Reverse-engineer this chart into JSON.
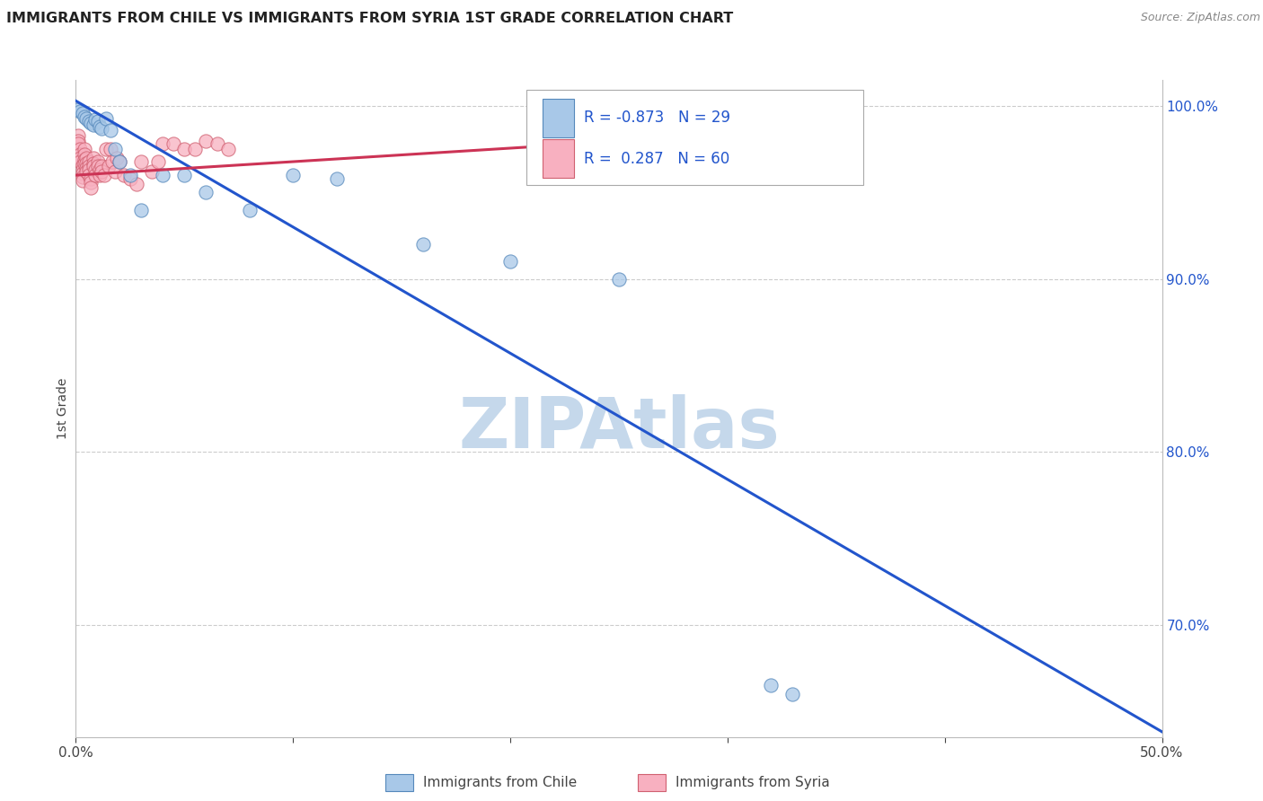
{
  "title": "IMMIGRANTS FROM CHILE VS IMMIGRANTS FROM SYRIA 1ST GRADE CORRELATION CHART",
  "source": "Source: ZipAtlas.com",
  "ylabel": "1st Grade",
  "xlim": [
    0.0,
    0.5
  ],
  "ylim": [
    0.635,
    1.015
  ],
  "xticks": [
    0.0,
    0.1,
    0.2,
    0.3,
    0.4,
    0.5
  ],
  "xticklabels": [
    "0.0%",
    "",
    "",
    "",
    "",
    "50.0%"
  ],
  "right_yticks": [
    1.0,
    0.9,
    0.8,
    0.7
  ],
  "right_yticklabels": [
    "100.0%",
    "90.0%",
    "80.0%",
    "70.0%"
  ],
  "watermark": "ZIPAtlas",
  "watermark_color": "#c5d8eb",
  "chile_color": "#a8c8e8",
  "chile_edge_color": "#5588bb",
  "syria_color": "#f8b0c0",
  "syria_edge_color": "#d06070",
  "chile_R": -0.873,
  "chile_N": 29,
  "syria_R": 0.287,
  "syria_N": 60,
  "chile_trend_color": "#2255cc",
  "syria_trend_color": "#cc3355",
  "legend_text_color": "#2255cc",
  "chile_scatter_x": [
    0.001,
    0.002,
    0.003,
    0.004,
    0.005,
    0.006,
    0.007,
    0.008,
    0.009,
    0.01,
    0.011,
    0.012,
    0.014,
    0.016,
    0.018,
    0.02,
    0.025,
    0.03,
    0.04,
    0.05,
    0.06,
    0.08,
    0.1,
    0.12,
    0.16,
    0.2,
    0.25,
    0.32,
    0.33
  ],
  "chile_scatter_y": [
    0.998,
    0.997,
    0.996,
    0.994,
    0.993,
    0.991,
    0.99,
    0.989,
    0.992,
    0.991,
    0.988,
    0.987,
    0.993,
    0.986,
    0.975,
    0.968,
    0.96,
    0.94,
    0.96,
    0.96,
    0.95,
    0.94,
    0.96,
    0.958,
    0.92,
    0.91,
    0.9,
    0.665,
    0.66
  ],
  "syria_scatter_x": [
    0.001,
    0.001,
    0.001,
    0.002,
    0.002,
    0.002,
    0.002,
    0.003,
    0.003,
    0.003,
    0.003,
    0.003,
    0.004,
    0.004,
    0.004,
    0.004,
    0.005,
    0.005,
    0.005,
    0.005,
    0.006,
    0.006,
    0.006,
    0.006,
    0.007,
    0.007,
    0.007,
    0.008,
    0.008,
    0.008,
    0.009,
    0.009,
    0.01,
    0.01,
    0.011,
    0.011,
    0.012,
    0.012,
    0.013,
    0.014,
    0.015,
    0.016,
    0.017,
    0.018,
    0.019,
    0.02,
    0.022,
    0.025,
    0.028,
    0.03,
    0.035,
    0.038,
    0.04,
    0.045,
    0.05,
    0.055,
    0.06,
    0.065,
    0.07,
    0.32
  ],
  "syria_scatter_y": [
    0.983,
    0.98,
    0.978,
    0.975,
    0.972,
    0.97,
    0.968,
    0.966,
    0.963,
    0.961,
    0.959,
    0.957,
    0.975,
    0.972,
    0.969,
    0.967,
    0.97,
    0.967,
    0.964,
    0.962,
    0.968,
    0.965,
    0.963,
    0.96,
    0.958,
    0.956,
    0.953,
    0.97,
    0.967,
    0.965,
    0.963,
    0.96,
    0.968,
    0.965,
    0.963,
    0.96,
    0.965,
    0.962,
    0.96,
    0.975,
    0.965,
    0.975,
    0.968,
    0.962,
    0.97,
    0.968,
    0.96,
    0.958,
    0.955,
    0.968,
    0.962,
    0.968,
    0.978,
    0.978,
    0.975,
    0.975,
    0.98,
    0.978,
    0.975,
    0.985
  ],
  "background_color": "#ffffff",
  "grid_color": "#cccccc",
  "chile_trend_x": [
    0.0,
    0.5
  ],
  "chile_trend_y": [
    1.003,
    0.638
  ],
  "syria_trend_x": [
    0.0,
    0.32
  ],
  "syria_trend_y": [
    0.96,
    0.985
  ]
}
